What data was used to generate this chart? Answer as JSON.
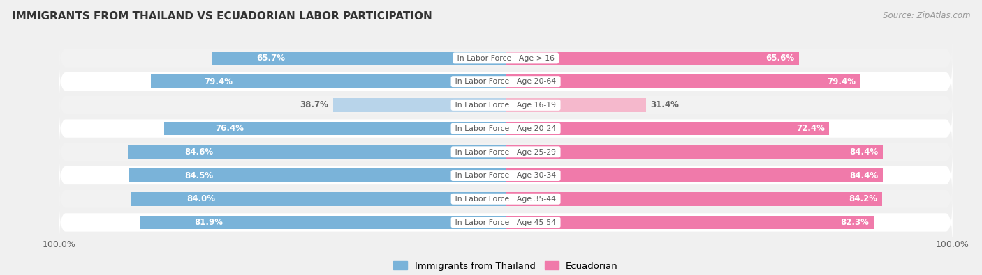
{
  "title": "IMMIGRANTS FROM THAILAND VS ECUADORIAN LABOR PARTICIPATION",
  "source": "Source: ZipAtlas.com",
  "categories": [
    "In Labor Force | Age > 16",
    "In Labor Force | Age 20-64",
    "In Labor Force | Age 16-19",
    "In Labor Force | Age 20-24",
    "In Labor Force | Age 25-29",
    "In Labor Force | Age 30-34",
    "In Labor Force | Age 35-44",
    "In Labor Force | Age 45-54"
  ],
  "thailand_values": [
    65.7,
    79.4,
    38.7,
    76.4,
    84.6,
    84.5,
    84.0,
    81.9
  ],
  "ecuador_values": [
    65.6,
    79.4,
    31.4,
    72.4,
    84.4,
    84.4,
    84.2,
    82.3
  ],
  "thailand_color_strong": "#7ab3d9",
  "thailand_color_light": "#b8d4ea",
  "ecuador_color_strong": "#f07aaa",
  "ecuador_color_light": "#f5b8cc",
  "row_bg_color": "#e8e8e8",
  "row_stripe_color": "#f2f2f2",
  "bg_color": "#f0f0f0",
  "label_white": "#ffffff",
  "label_dark": "#666666",
  "center_label_color": "#555555",
  "max_value": 100.0,
  "legend_thailand": "Immigrants from Thailand",
  "legend_ecuador": "Ecuadorian",
  "bar_height": 0.78,
  "threshold": 45.0
}
